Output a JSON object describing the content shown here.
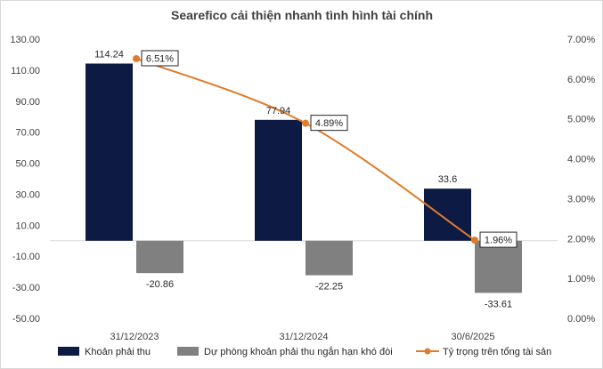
{
  "chart_data": {
    "type": "bar",
    "title": "Searefico cải thiện nhanh tình hình tài chính",
    "categories": [
      "31/12/2023",
      "31/12/2024",
      "30/6/2025"
    ],
    "series": [
      {
        "name": "Khoản phải thu",
        "kind": "bar",
        "axis": "left",
        "color": "#0c1a44",
        "values": [
          114.24,
          77.94,
          33.6
        ],
        "labels": [
          "114.24",
          "77.94",
          "33.6"
        ]
      },
      {
        "name": "Dự phòng khoản phải thu ngắn hạn khó đòi",
        "kind": "bar",
        "axis": "left",
        "color": "#808080",
        "values": [
          -20.86,
          -22.25,
          -33.61
        ],
        "labels": [
          "-20.86",
          "-22.25",
          "-33.61"
        ]
      },
      {
        "name": "Tỷ trọng trên tổng tài sản",
        "kind": "line",
        "axis": "right",
        "color": "#e07b2a",
        "values": [
          6.51,
          4.89,
          1.96
        ],
        "labels": [
          "6.51%",
          "4.89%",
          "1.96%"
        ]
      }
    ],
    "y_left": {
      "min": -50,
      "max": 130,
      "ticks": [
        130,
        110,
        90,
        70,
        50,
        30,
        10,
        -10,
        -30,
        -50
      ],
      "tick_labels": [
        "130.00",
        "110.00",
        "90.00",
        "70.00",
        "50.00",
        "30.00",
        "10.00",
        "-10.00",
        "-30.00",
        "-50.00"
      ]
    },
    "y_right": {
      "min": 0,
      "max": 7,
      "ticks": [
        7,
        6,
        5,
        4,
        3,
        2,
        1,
        0
      ],
      "tick_labels": [
        "7.00%",
        "6.00%",
        "5.00%",
        "4.00%",
        "3.00%",
        "2.00%",
        "1.00%",
        "0.00%"
      ]
    },
    "grid": false,
    "legend": "bottom"
  }
}
